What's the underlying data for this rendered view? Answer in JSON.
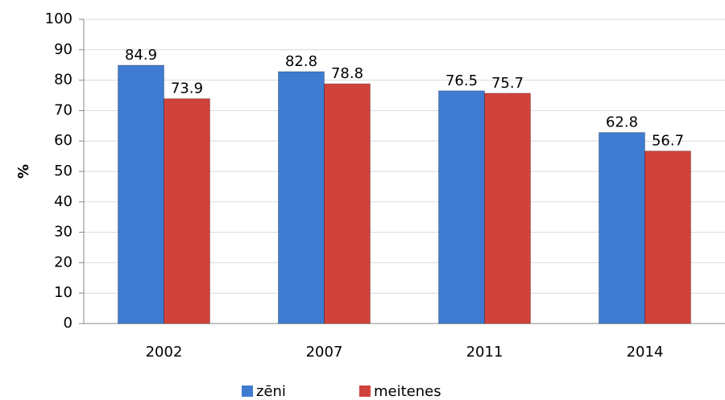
{
  "chart_data": {
    "type": "bar",
    "ylabel": "%",
    "categories": [
      "2002",
      "2007",
      "2011",
      "2014"
    ],
    "series": [
      {
        "name": "zēni",
        "color": "#3f7bd0",
        "values": [
          84.9,
          82.8,
          76.5,
          62.8
        ]
      },
      {
        "name": "meitenes",
        "color": "#d0423c",
        "values": [
          73.9,
          78.8,
          75.7,
          56.7
        ]
      }
    ],
    "ylim": [
      0,
      100
    ],
    "yticks": [
      0,
      10,
      20,
      30,
      40,
      50,
      60,
      70,
      80,
      90,
      100
    ],
    "grid": true,
    "legend": "bottom"
  }
}
